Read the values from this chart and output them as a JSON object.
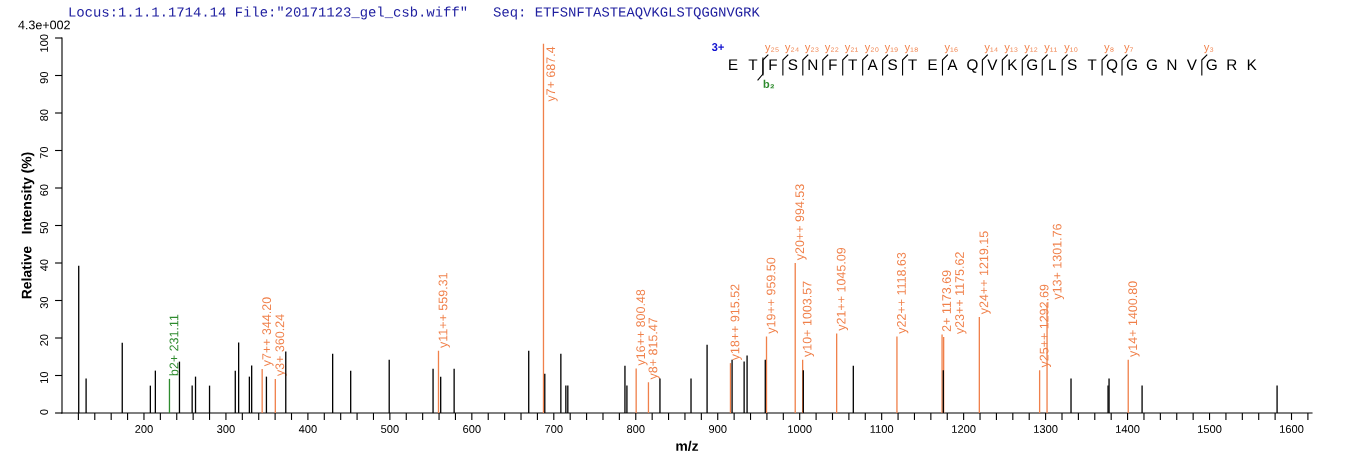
{
  "chart_data": {
    "type": "bar",
    "title": "Locus:1.1.1.1714.14 File:\"20171123_gel_csb.wiff\"   Seq: ETFSNFTASTEAQVKGLSTQGGNVGRK",
    "xlabel": "m/z",
    "ylabel": "Relative   Intensity (%)",
    "xlim": [
      100,
      1625
    ],
    "ylim": [
      0,
      100
    ],
    "xticks": [
      {
        "value": 120,
        "label": null
      },
      {
        "value": 140,
        "label": null
      },
      {
        "value": 160,
        "label": null
      },
      {
        "value": 180,
        "label": null
      },
      200,
      {
        "value": 220,
        "label": null
      },
      {
        "value": 240,
        "label": null
      },
      {
        "value": 260,
        "label": null
      },
      {
        "value": 280,
        "label": null
      },
      300,
      {
        "value": 320,
        "label": null
      },
      {
        "value": 340,
        "label": null
      },
      {
        "value": 360,
        "label": null
      },
      {
        "value": 380,
        "label": null
      },
      400,
      {
        "value": 420,
        "label": null
      },
      {
        "value": 440,
        "label": null
      },
      {
        "value": 460,
        "label": null
      },
      {
        "value": 480,
        "label": null
      },
      500,
      {
        "value": 520,
        "label": null
      },
      {
        "value": 540,
        "label": null
      },
      {
        "value": 560,
        "label": null
      },
      {
        "value": 580,
        "label": null
      },
      600,
      {
        "value": 620,
        "label": null
      },
      {
        "value": 640,
        "label": null
      },
      {
        "value": 660,
        "label": null
      },
      {
        "value": 680,
        "label": null
      },
      700,
      {
        "value": 720,
        "label": null
      },
      {
        "value": 740,
        "label": null
      },
      {
        "value": 760,
        "label": null
      },
      {
        "value": 780,
        "label": null
      },
      800,
      {
        "value": 820,
        "label": null
      },
      {
        "value": 840,
        "label": null
      },
      {
        "value": 860,
        "label": null
      },
      {
        "value": 880,
        "label": null
      },
      900,
      {
        "value": 920,
        "label": null
      },
      {
        "value": 940,
        "label": null
      },
      {
        "value": 960,
        "label": null
      },
      {
        "value": 980,
        "label": null
      },
      1000,
      {
        "value": 1020,
        "label": null
      },
      {
        "value": 1040,
        "label": null
      },
      {
        "value": 1060,
        "label": null
      },
      {
        "value": 1080,
        "label": null
      },
      1100,
      {
        "value": 1120,
        "label": null
      },
      {
        "value": 1140,
        "label": null
      },
      {
        "value": 1160,
        "label": null
      },
      {
        "value": 1180,
        "label": null
      },
      1200,
      {
        "value": 1220,
        "label": null
      },
      {
        "value": 1240,
        "label": null
      },
      {
        "value": 1260,
        "label": null
      },
      {
        "value": 1280,
        "label": null
      },
      1300,
      {
        "value": 1320,
        "label": null
      },
      {
        "value": 1340,
        "label": null
      },
      {
        "value": 1360,
        "label": null
      },
      {
        "value": 1380,
        "label": null
      },
      1400,
      {
        "value": 1420,
        "label": null
      },
      {
        "value": 1440,
        "label": null
      },
      {
        "value": 1460,
        "label": null
      },
      {
        "value": 1480,
        "label": null
      },
      1500,
      {
        "value": 1520,
        "label": null
      },
      {
        "value": 1540,
        "label": null
      },
      {
        "value": 1560,
        "label": null
      },
      {
        "value": 1580,
        "label": null
      },
      1600,
      {
        "value": 1620,
        "label": null
      }
    ],
    "yticks": [
      0,
      10,
      20,
      30,
      40,
      50,
      60,
      70,
      80,
      90,
      100
    ],
    "grid": false,
    "annotations": [
      "4.3e+002",
      "3+",
      "ETFSNFTASTEAQVKGLSTQGGNVGRK",
      "y₂₅",
      "y₂₄",
      "y₂₃",
      "y₂₂",
      "y₂₁",
      "y₂₀",
      "y₁₉",
      "y₁₈",
      "y₁₆",
      "y₁₄",
      "y₁₃",
      "y₁₂",
      "y₁₁",
      "y₁₀",
      "y₈",
      "y₇",
      "y₃",
      "b₂",
      {
        "text": "b2+ 231.11",
        "x": 231.11,
        "y": 9.1
      },
      {
        "text": "y7++ 344.20",
        "x": 344.2,
        "y": 11.7
      },
      {
        "text": "y3+ 360.24",
        "x": 360.24,
        "y": 9.1
      },
      {
        "text": "y11++ 559.31",
        "x": 559.31,
        "y": 16.6
      },
      {
        "text": "y7+ 687.4",
        "x": 687.4,
        "y": 98.5
      },
      {
        "text": "y16++ 800.48",
        "x": 800.48,
        "y": 11.9
      },
      {
        "text": "y8+ 815.47",
        "x": 815.47,
        "y": 8.2
      },
      {
        "text": "y18++ 915.52",
        "x": 915.52,
        "y": 13.3
      },
      {
        "text": "y19++ 959.50",
        "x": 959.5,
        "y": 20.4
      },
      {
        "text": "y20++ 994.53",
        "x": 994.53,
        "y": 40.0
      },
      {
        "text": "y10+ 1003.57",
        "x": 1003.57,
        "y": 14.2
      },
      {
        "text": "y21++ 1045.09",
        "x": 1045.09,
        "y": 21.2
      },
      {
        "text": "y22++ 1118.63",
        "x": 1118.63,
        "y": 20.4
      },
      {
        "text": "2+ 1173.69",
        "x": 1173.69,
        "y": 20.9
      },
      {
        "text": "y23++ 1175.62",
        "x": 1175.62,
        "y": 20.3
      },
      {
        "text": "y24++ 1219.15",
        "x": 1219.15,
        "y": 25.6
      },
      {
        "text": "y25++ 1292.69",
        "x": 1292.69,
        "y": 11.4
      },
      {
        "text": "y13+ 1301.76",
        "x": 1301.76,
        "y": 29.5
      },
      {
        "text": "y14+ 1400.80",
        "x": 1400.8,
        "y": 14.2
      }
    ],
    "series": [
      {
        "color": "#000000",
        "x": [
          120.4,
          129.4,
          173.5,
          207.8,
          213.9,
          243.3,
          258.8,
          262.9,
          280,
          311.4,
          315.5,
          328.6,
          331.4,
          349.4,
          373,
          430.2,
          452.2,
          499.2,
          552.7,
          562,
          578.4,
          669.4,
          689,
          708.6,
          714.7,
          717.1,
          786.8,
          789.2,
          829.5,
          867.4,
          887,
          917.5,
          932.2,
          935.8,
          958,
          1004.4,
          1065.4,
          1175.2,
          1331,
          1376.2,
          1377.4,
          1417.7,
          1582.4
        ],
        "values": [
          39.3,
          9.2,
          18.7,
          7.3,
          11.3,
          13.7,
          7.3,
          9.7,
          7.3,
          11.3,
          18.8,
          9.7,
          12.7,
          9.7,
          16.4,
          15.8,
          11.3,
          14.2,
          11.8,
          9.7,
          11.8,
          16.6,
          10.5,
          15.8,
          7.3,
          7.3,
          12.6,
          7.3,
          9.2,
          9.2,
          18.2,
          14.2,
          13.7,
          15.3,
          14.2,
          11.4,
          12.6,
          11.4,
          9.2,
          7.3,
          9.2,
          7.3,
          7.3
        ]
      },
      {
        "color": "#f0804a",
        "x": [
          344.2,
          360.24,
          559.31,
          687.4,
          800.48,
          815.47,
          915.52,
          959.5,
          994.53,
          1003.57,
          1045.09,
          1118.63,
          1173.69,
          1175.62,
          1219.15,
          1292.69,
          1301.76,
          1400.8
        ],
        "values": [
          11.7,
          9.1,
          16.6,
          98.5,
          11.9,
          8.2,
          13.3,
          20.4,
          40.0,
          14.2,
          21.2,
          20.4,
          20.9,
          20.3,
          25.6,
          11.4,
          29.5,
          14.2
        ]
      },
      {
        "color": "#2e8b2e",
        "x": [
          231.11
        ],
        "values": [
          9.1
        ]
      }
    ]
  }
}
